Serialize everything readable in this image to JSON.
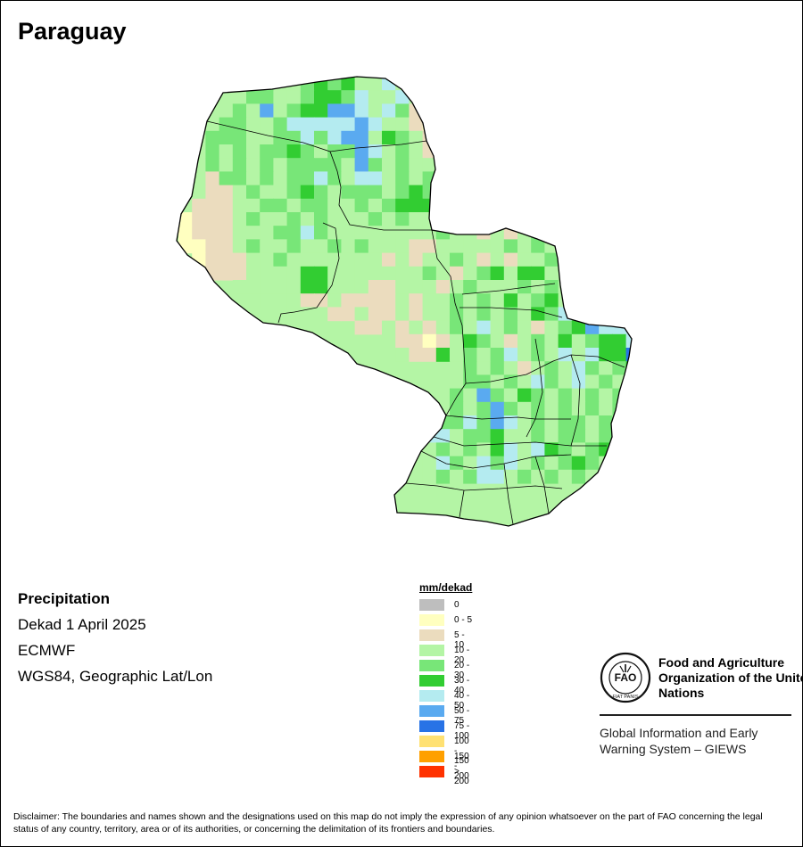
{
  "title": "Paraguay",
  "map_info": {
    "heading": "Precipitation",
    "period": "Dekad 1 April 2025",
    "model": "ECMWF",
    "projection": "WGS84, Geographic Lat/Lon"
  },
  "legend": {
    "title": "mm/dekad",
    "items": [
      {
        "label": "0",
        "color": "#bebebe"
      },
      {
        "label": "0 - 5",
        "color": "#ffffc0"
      },
      {
        "label": "5 - 10",
        "color": "#ebdcbe"
      },
      {
        "label": "10 - 20",
        "color": "#b4f5a5"
      },
      {
        "label": "20 - 30",
        "color": "#78e678"
      },
      {
        "label": "30 - 40",
        "color": "#32cd32"
      },
      {
        "label": "40 - 50",
        "color": "#b4ebf0"
      },
      {
        "label": "50 - 75",
        "color": "#5aaaf0"
      },
      {
        "label": "75 - 100",
        "color": "#2873e6"
      },
      {
        "label": "100 - 150",
        "color": "#ffe173"
      },
      {
        "label": "150 - 200",
        "color": "#ffa000"
      },
      {
        "label": "> 200",
        "color": "#ff3200"
      }
    ]
  },
  "organization": {
    "logo_text": "FAO",
    "logo_motto": "FIAT PANIS",
    "name": "Food and Agriculture Organization of the United Nations",
    "system": "Global Information and Early Warning System – GIEWS"
  },
  "disclaimer": "Disclaimer: The boundaries and names shown and the designations used on this map do not imply the expression of any opinion whatsoever on the part of FAO concerning the legal status of any country, territory, area or of its authorities, or concerning the delimitation of its frontiers and boundaries."
}
